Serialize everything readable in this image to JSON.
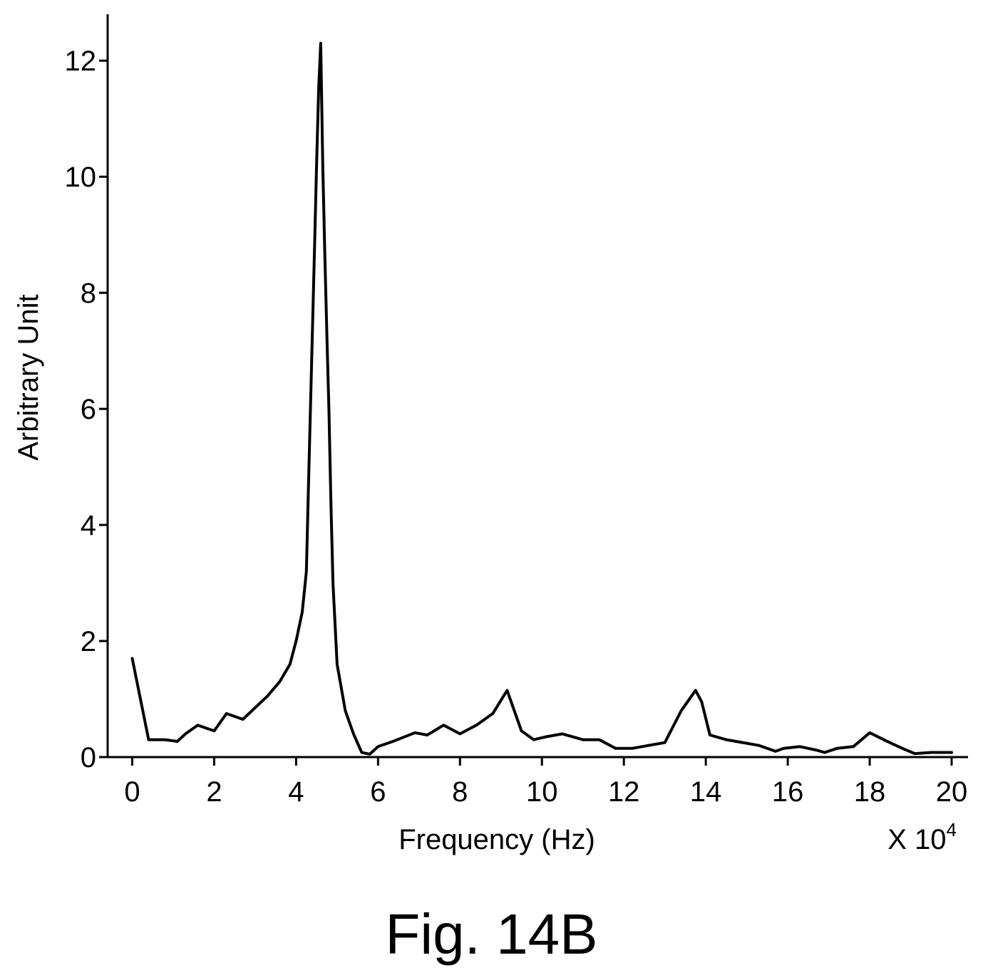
{
  "figure": {
    "caption": "Fig. 14B"
  },
  "chart_data": {
    "type": "line",
    "xlabel": "Frequency (Hz)",
    "x_multiplier_label": {
      "base": "X 10",
      "exponent": "4"
    },
    "ylabel": "Arbitrary Unit",
    "xlim": [
      -0.6,
      20.4
    ],
    "ylim": [
      0,
      12.8
    ],
    "xticks": [
      0,
      2,
      4,
      6,
      8,
      10,
      12,
      14,
      16,
      18,
      20
    ],
    "yticks": [
      0,
      2,
      4,
      6,
      8,
      10,
      12
    ],
    "grid": false,
    "legend": "none",
    "series": [
      {
        "color": "#000000",
        "x": [
          0,
          0.2,
          0.4,
          0.6,
          0.8,
          1.0,
          1.1,
          1.3,
          1.6,
          2.0,
          2.3,
          2.7,
          3.0,
          3.3,
          3.6,
          3.85,
          4.0,
          4.15,
          4.25,
          4.3,
          4.35,
          4.4,
          4.45,
          4.5,
          4.55,
          4.6,
          4.65,
          4.7,
          4.75,
          4.8,
          4.85,
          4.9,
          5.0,
          5.2,
          5.4,
          5.6,
          5.8,
          6.0,
          6.4,
          6.9,
          7.2,
          7.6,
          8.0,
          8.4,
          8.8,
          9.15,
          9.5,
          9.8,
          10.1,
          10.5,
          11.0,
          11.4,
          11.8,
          12.2,
          12.6,
          13.0,
          13.4,
          13.75,
          13.9,
          14.1,
          14.5,
          14.9,
          15.3,
          15.7,
          15.9,
          16.3,
          16.7,
          16.9,
          17.2,
          17.6,
          18.0,
          18.4,
          18.8,
          19.1,
          19.5,
          20.0
        ],
        "y": [
          1.7,
          1.0,
          0.3,
          0.3,
          0.3,
          0.28,
          0.27,
          0.4,
          0.55,
          0.45,
          0.75,
          0.65,
          0.85,
          1.05,
          1.3,
          1.6,
          2.0,
          2.5,
          3.2,
          4.6,
          6.0,
          7.4,
          8.8,
          10.2,
          11.5,
          12.3,
          10.2,
          8.7,
          7.3,
          6.0,
          4.4,
          3.0,
          1.6,
          0.8,
          0.4,
          0.08,
          0.05,
          0.18,
          0.28,
          0.42,
          0.38,
          0.55,
          0.4,
          0.55,
          0.75,
          1.15,
          0.45,
          0.3,
          0.35,
          0.4,
          0.3,
          0.3,
          0.15,
          0.15,
          0.2,
          0.25,
          0.8,
          1.15,
          0.95,
          0.38,
          0.3,
          0.25,
          0.2,
          0.1,
          0.15,
          0.18,
          0.12,
          0.08,
          0.15,
          0.18,
          0.42,
          0.28,
          0.15,
          0.06,
          0.08,
          0.08
        ]
      }
    ]
  }
}
